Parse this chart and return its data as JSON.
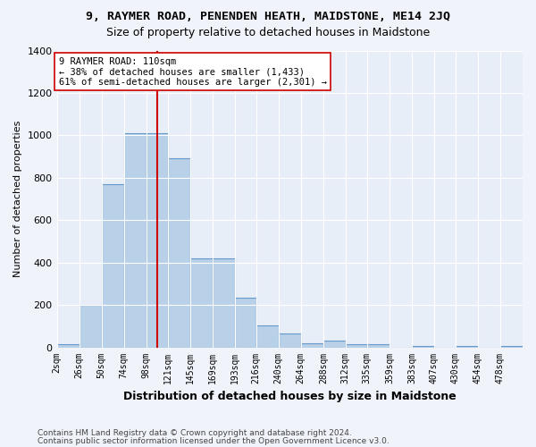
{
  "title": "9, RAYMER ROAD, PENENDEN HEATH, MAIDSTONE, ME14 2JQ",
  "subtitle": "Size of property relative to detached houses in Maidstone",
  "xlabel": "Distribution of detached houses by size in Maidstone",
  "ylabel": "Number of detached properties",
  "bar_color": "#b8d0e8",
  "bar_edge_color": "#6699cc",
  "categories": [
    "2sqm",
    "26sqm",
    "50sqm",
    "74sqm",
    "98sqm",
    "121sqm",
    "145sqm",
    "169sqm",
    "193sqm",
    "216sqm",
    "240sqm",
    "264sqm",
    "288sqm",
    "312sqm",
    "335sqm",
    "359sqm",
    "383sqm",
    "407sqm",
    "430sqm",
    "454sqm",
    "478sqm"
  ],
  "values": [
    15,
    200,
    770,
    1010,
    1010,
    890,
    420,
    420,
    235,
    105,
    65,
    20,
    30,
    15,
    15,
    0,
    5,
    0,
    5,
    0,
    5
  ],
  "vline_color": "#cc0000",
  "annotation_text": "9 RAYMER ROAD: 110sqm\n← 38% of detached houses are smaller (1,433)\n61% of semi-detached houses are larger (2,301) →",
  "annotation_box_color": "white",
  "annotation_box_edge": "#cc0000",
  "ylim": [
    0,
    1400
  ],
  "yticks": [
    0,
    200,
    400,
    600,
    800,
    1000,
    1200,
    1400
  ],
  "footer1": "Contains HM Land Registry data © Crown copyright and database right 2024.",
  "footer2": "Contains public sector information licensed under the Open Government Licence v3.0.",
  "bg_color": "#f0f4fa",
  "plot_bg_color": "#e8eef8",
  "property_sqm": 110,
  "bin_edges": [
    2,
    26,
    50,
    74,
    98,
    121,
    145,
    169,
    193,
    216,
    240,
    264,
    288,
    312,
    335,
    359,
    383,
    407,
    430,
    454,
    478,
    502
  ]
}
